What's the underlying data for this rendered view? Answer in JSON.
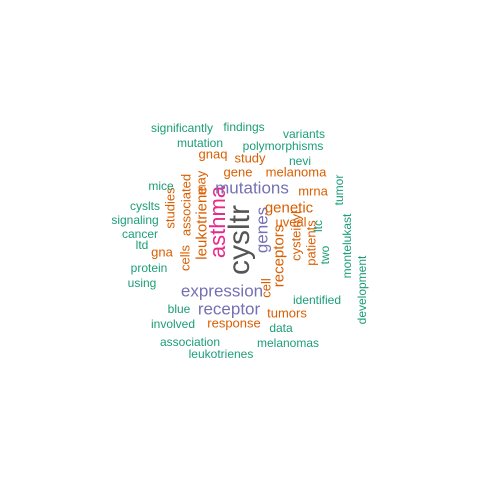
{
  "colors": {
    "teal": "#1b9e77",
    "orange": "#d95f02",
    "purple": "#7570b3",
    "pink": "#e7298a",
    "gray": "#555555"
  },
  "words": [
    {
      "text": "cysltr",
      "color": "gray",
      "vertical": true
    },
    {
      "text": "asthma",
      "color": "pink",
      "vertical": true
    },
    {
      "text": "expression",
      "color": "purple",
      "vertical": false
    },
    {
      "text": "mutations",
      "color": "purple",
      "vertical": false
    },
    {
      "text": "receptor",
      "color": "purple",
      "vertical": false
    },
    {
      "text": "genes",
      "color": "purple",
      "vertical": true
    },
    {
      "text": "leukotriene",
      "color": "orange",
      "vertical": true
    },
    {
      "text": "receptors",
      "color": "orange",
      "vertical": true
    },
    {
      "text": "genetic",
      "color": "orange",
      "vertical": false
    },
    {
      "text": "melanoma",
      "color": "orange",
      "vertical": false
    },
    {
      "text": "gene",
      "color": "orange",
      "vertical": false
    },
    {
      "text": "uveal",
      "color": "orange",
      "vertical": false
    },
    {
      "text": "cysteinyl",
      "color": "orange",
      "vertical": true
    },
    {
      "text": "patients",
      "color": "orange",
      "vertical": true
    },
    {
      "text": "associated",
      "color": "orange",
      "vertical": true
    },
    {
      "text": "cells",
      "color": "orange",
      "vertical": true
    },
    {
      "text": "may",
      "color": "orange",
      "vertical": true
    },
    {
      "text": "studies",
      "color": "orange",
      "vertical": true
    },
    {
      "text": "response",
      "color": "orange",
      "vertical": false
    },
    {
      "text": "tumors",
      "color": "orange",
      "vertical": false
    },
    {
      "text": "mrna",
      "color": "orange",
      "vertical": false
    },
    {
      "text": "gnaq",
      "color": "orange",
      "vertical": false
    },
    {
      "text": "study",
      "color": "orange",
      "vertical": false
    },
    {
      "text": "gna",
      "color": "orange",
      "vertical": false
    },
    {
      "text": "cell",
      "color": "orange",
      "vertical": true
    },
    {
      "text": "polymorphisms",
      "color": "teal",
      "vertical": false
    },
    {
      "text": "significantly",
      "color": "teal",
      "vertical": false
    },
    {
      "text": "findings",
      "color": "teal",
      "vertical": false
    },
    {
      "text": "variants",
      "color": "teal",
      "vertical": false
    },
    {
      "text": "mutation",
      "color": "teal",
      "vertical": false
    },
    {
      "text": "nevi",
      "color": "teal",
      "vertical": false
    },
    {
      "text": "mice",
      "color": "teal",
      "vertical": false
    },
    {
      "text": "tumor",
      "color": "teal",
      "vertical": true
    },
    {
      "text": "cyslts",
      "color": "teal",
      "vertical": false
    },
    {
      "text": "signaling",
      "color": "teal",
      "vertical": false
    },
    {
      "text": "cancer",
      "color": "teal",
      "vertical": false
    },
    {
      "text": "ltd",
      "color": "teal",
      "vertical": false
    },
    {
      "text": "ltc",
      "color": "teal",
      "vertical": true
    },
    {
      "text": "two",
      "color": "teal",
      "vertical": true
    },
    {
      "text": "montelukast",
      "color": "teal",
      "vertical": true
    },
    {
      "text": "development",
      "color": "teal",
      "vertical": true
    },
    {
      "text": "protein",
      "color": "teal",
      "vertical": false
    },
    {
      "text": "using",
      "color": "teal",
      "vertical": false
    },
    {
      "text": "blue",
      "color": "teal",
      "vertical": false
    },
    {
      "text": "identified",
      "color": "teal",
      "vertical": false
    },
    {
      "text": "involved",
      "color": "teal",
      "vertical": false
    },
    {
      "text": "data",
      "color": "teal",
      "vertical": false
    },
    {
      "text": "association",
      "color": "teal",
      "vertical": false
    },
    {
      "text": "melanomas",
      "color": "teal",
      "vertical": false
    },
    {
      "text": "leukotrienes",
      "color": "teal",
      "vertical": false
    }
  ]
}
